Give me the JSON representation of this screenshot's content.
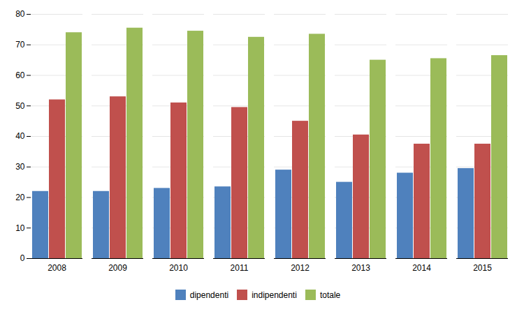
{
  "chart_data": {
    "type": "bar",
    "categories": [
      "2008",
      "2009",
      "2010",
      "2011",
      "2012",
      "2013",
      "2014",
      "2015"
    ],
    "series": [
      {
        "name": "dipendenti",
        "color": "#4F81BD",
        "values": [
          22,
          22,
          23,
          23.5,
          29,
          25,
          28,
          29.5
        ]
      },
      {
        "name": "indipendenti",
        "color": "#C0504D",
        "values": [
          52,
          53,
          51,
          49.5,
          45,
          40.5,
          37.5,
          37.5
        ]
      },
      {
        "name": "totale",
        "color": "#9BBB59",
        "values": [
          74,
          75.5,
          74.5,
          72.5,
          73.5,
          65,
          65.5,
          66.5
        ]
      }
    ],
    "ylim": [
      0,
      80
    ],
    "yticks": [
      0,
      10,
      20,
      30,
      40,
      50,
      60,
      70,
      80
    ],
    "grid": true,
    "legend": "bottom"
  }
}
